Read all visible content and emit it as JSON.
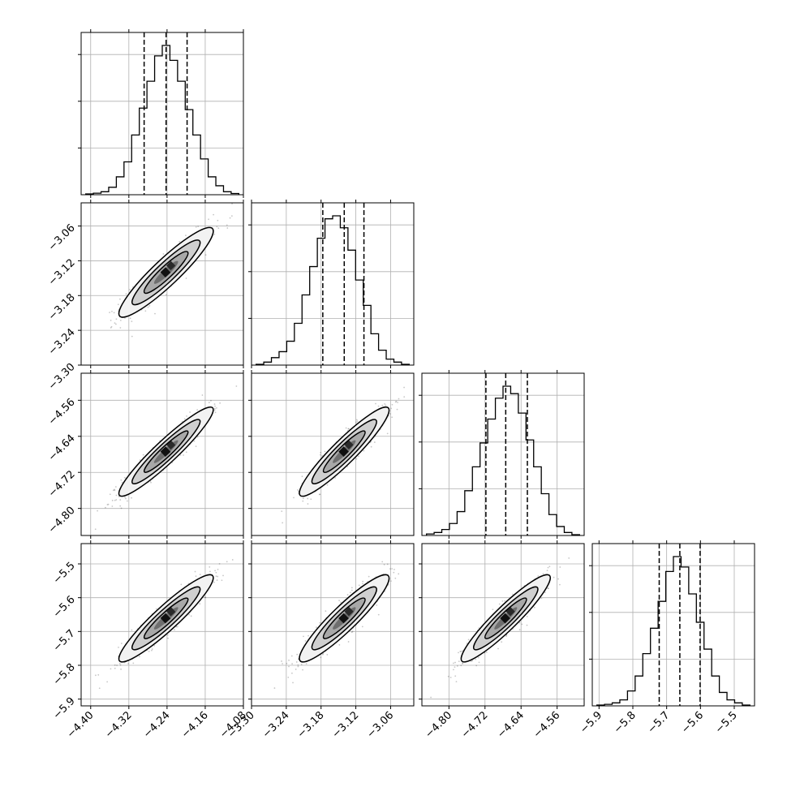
{
  "chart_data": {
    "type": "corner",
    "grid": true,
    "params": [
      {
        "range": [
          -4.42,
          -4.08
        ],
        "ticks": [
          -4.4,
          -4.32,
          -4.24,
          -4.16,
          -4.08
        ],
        "tick_labels": [
          "−4.40",
          "−4.32",
          "−4.24",
          "−4.16",
          "−4.08"
        ],
        "quantiles": [
          -4.288,
          -4.242,
          -4.198
        ],
        "histogram": [
          0.005,
          0.01,
          0.02,
          0.05,
          0.12,
          0.22,
          0.4,
          0.58,
          0.76,
          0.93,
          1.0,
          0.9,
          0.76,
          0.57,
          0.4,
          0.24,
          0.12,
          0.06,
          0.02,
          0.008
        ]
      },
      {
        "range": [
          -3.3,
          -3.02
        ],
        "ticks": [
          -3.3,
          -3.24,
          -3.18,
          -3.12,
          -3.06
        ],
        "tick_labels": [
          "−3.30",
          "−3.24",
          "−3.18",
          "−3.12",
          "−3.06"
        ],
        "quantiles": [
          -3.177,
          -3.14,
          -3.106
        ],
        "histogram": [
          0.005,
          0.02,
          0.05,
          0.09,
          0.16,
          0.28,
          0.47,
          0.66,
          0.85,
          0.98,
          1.0,
          0.92,
          0.77,
          0.57,
          0.4,
          0.21,
          0.1,
          0.04,
          0.02,
          0.005
        ]
      },
      {
        "range": [
          -4.86,
          -4.5
        ],
        "ticks": [
          -4.8,
          -4.72,
          -4.64,
          -4.56
        ],
        "tick_labels": [
          "−4.80",
          "−4.72",
          "−4.64",
          "−4.56"
        ],
        "quantiles": [
          -4.718,
          -4.674,
          -4.626
        ],
        "histogram": [
          0.01,
          0.02,
          0.04,
          0.08,
          0.16,
          0.3,
          0.46,
          0.62,
          0.78,
          0.92,
          1.0,
          0.95,
          0.82,
          0.64,
          0.46,
          0.28,
          0.14,
          0.06,
          0.02,
          0.005
        ]
      },
      {
        "range": [
          -5.92,
          -5.44
        ],
        "ticks": [
          -5.9,
          -5.8,
          -5.7,
          -5.6,
          -5.5
        ],
        "tick_labels": [
          "−5.9",
          "−5.8",
          "−5.7",
          "−5.6",
          "−5.5"
        ],
        "quantiles": [
          -5.722,
          -5.661,
          -5.601
        ],
        "histogram": [
          0.005,
          0.01,
          0.02,
          0.04,
          0.1,
          0.2,
          0.35,
          0.52,
          0.7,
          0.9,
          1.0,
          0.93,
          0.75,
          0.56,
          0.38,
          0.2,
          0.09,
          0.04,
          0.02,
          0.005
        ]
      }
    ],
    "pairs": [
      {
        "x": 0,
        "y": 1,
        "center": [
          -4.242,
          -3.14
        ],
        "sigma": [
          0.046,
          0.036
        ],
        "corr": 0.92
      },
      {
        "x": 0,
        "y": 2,
        "center": [
          -4.242,
          -4.674
        ],
        "sigma": [
          0.046,
          0.046
        ],
        "corr": 0.94
      },
      {
        "x": 1,
        "y": 2,
        "center": [
          -3.14,
          -4.674
        ],
        "sigma": [
          0.036,
          0.046
        ],
        "corr": 0.93
      },
      {
        "x": 0,
        "y": 3,
        "center": [
          -4.242,
          -5.661
        ],
        "sigma": [
          0.046,
          0.06
        ],
        "corr": 0.93
      },
      {
        "x": 1,
        "y": 3,
        "center": [
          -3.14,
          -5.661
        ],
        "sigma": [
          0.036,
          0.06
        ],
        "corr": 0.92
      },
      {
        "x": 2,
        "y": 3,
        "center": [
          -4.674,
          -5.661
        ],
        "sigma": [
          0.046,
          0.06
        ],
        "corr": 0.93
      }
    ]
  }
}
